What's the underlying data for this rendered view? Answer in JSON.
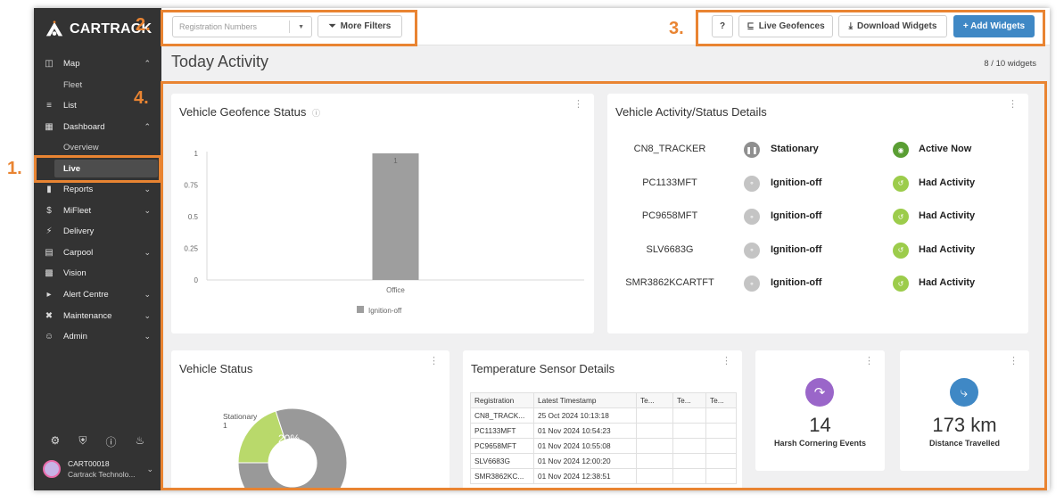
{
  "brand": {
    "name": "CARTRACK"
  },
  "markers": {
    "m1": "1.",
    "m2": "2.",
    "m3": "3.",
    "m4": "4."
  },
  "sidebar": {
    "items": [
      {
        "label": "Map",
        "icon": "map-icon",
        "expanded": true
      },
      {
        "label": "Fleet",
        "sub": true
      },
      {
        "label": "List",
        "icon": "list-icon"
      },
      {
        "label": "Dashboard",
        "icon": "dashboard-icon",
        "expanded": true
      },
      {
        "label": "Overview",
        "sub": true
      },
      {
        "label": "Live",
        "sub": true,
        "active": true
      },
      {
        "label": "Reports",
        "icon": "bar-chart-icon"
      },
      {
        "label": "MiFleet",
        "icon": "dollar-icon"
      },
      {
        "label": "Delivery",
        "icon": "bolt-icon"
      },
      {
        "label": "Carpool",
        "icon": "calendar-icon"
      },
      {
        "label": "Vision",
        "icon": "camera-icon"
      },
      {
        "label": "Alert Centre",
        "icon": "megaphone-icon"
      },
      {
        "label": "Maintenance",
        "icon": "tools-icon"
      },
      {
        "label": "Admin",
        "icon": "users-icon"
      }
    ],
    "user": {
      "name": "CART00018",
      "company": "Cartrack Technolo..."
    }
  },
  "topbar": {
    "registration_placeholder": "Registration Numbers",
    "more_filters": "More Filters",
    "help": "?",
    "live_geofences": "Live Geofences",
    "download_widgets": "Download Widgets",
    "add_widgets": "+ Add Widgets"
  },
  "page": {
    "title": "Today Activity",
    "widget_count": "8 / 10 widgets"
  },
  "geofence_widget": {
    "title": "Vehicle Geofence Status"
  },
  "chart_data": {
    "type": "bar",
    "categories": [
      "Office"
    ],
    "series": [
      {
        "name": "Ignition-off",
        "values": [
          1
        ]
      }
    ],
    "data_labels": [
      "1"
    ],
    "ylim": [
      0,
      1
    ],
    "yticks": [
      "0",
      "0.25",
      "0.5",
      "0.75",
      "1"
    ],
    "legend_placement": "bottom",
    "color": "#9e9e9e"
  },
  "activity_widget": {
    "title": "Vehicle Activity/Status Details",
    "rows": [
      {
        "reg": "CN8_TRACKER",
        "status": "Stationary",
        "activity": "Active Now",
        "status_icon": "pause-icon",
        "activity_icon": "location-pin-icon"
      },
      {
        "reg": "PC1133MFT",
        "status": "Ignition-off",
        "activity": "Had Activity",
        "status_icon": "key-icon",
        "activity_icon": "history-icon"
      },
      {
        "reg": "PC9658MFT",
        "status": "Ignition-off",
        "activity": "Had Activity",
        "status_icon": "key-icon",
        "activity_icon": "history-icon"
      },
      {
        "reg": "SLV6683G",
        "status": "Ignition-off",
        "activity": "Had Activity",
        "status_icon": "key-icon",
        "activity_icon": "history-icon"
      },
      {
        "reg": "SMR3862KCARTFT",
        "status": "Ignition-off",
        "activity": "Had Activity",
        "status_icon": "key-icon",
        "activity_icon": "history-icon"
      }
    ]
  },
  "vehicle_status_widget": {
    "title": "Vehicle Status",
    "pie": {
      "label": "Stationary",
      "count": "1",
      "percent_label": "20%",
      "percent": 20
    }
  },
  "temperature_widget": {
    "title": "Temperature Sensor Details",
    "columns": [
      "Registration",
      "Latest Timestamp",
      "Te...",
      "Te...",
      "Te..."
    ],
    "rows": [
      [
        "CN8_TRACK...",
        "25 Oct 2024 10:13:18"
      ],
      [
        "PC1133MFT",
        "01 Nov 2024 10:54:23"
      ],
      [
        "PC9658MFT",
        "01 Nov 2024 10:55:08"
      ],
      [
        "SLV6683G",
        "01 Nov 2024 12:00:20"
      ],
      [
        "SMR3862KC...",
        "01 Nov 2024 12:38:51"
      ]
    ]
  },
  "harsh_widget": {
    "value": "14",
    "label": "Harsh Cornering Events",
    "color": "#9a66c9"
  },
  "distance_widget": {
    "value": "173 km",
    "label": "Distance Travelled",
    "color": "#3f88c5"
  }
}
